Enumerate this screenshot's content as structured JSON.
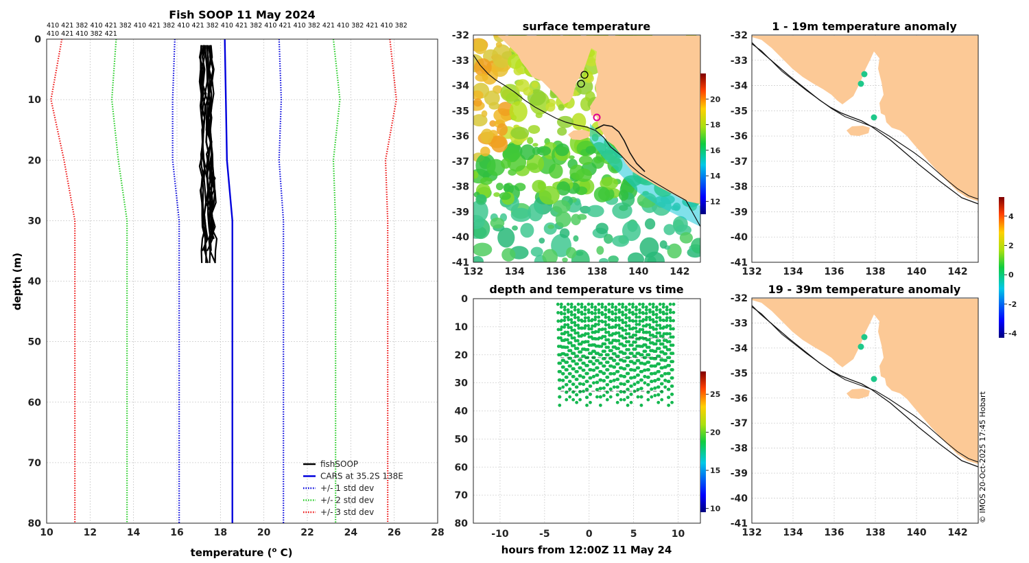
{
  "chart_data": [
    {
      "type": "line",
      "title": "Fish SOOP 11 May 2024",
      "xlabel_main": "temperature (",
      "xlabel_sup": "o",
      "xlabel_end": " C)",
      "ylabel": "depth (m)",
      "xlim": [
        10,
        28
      ],
      "ylim": [
        0,
        80
      ],
      "y_reversed": true,
      "xticks": [
        "10",
        "12",
        "14",
        "16",
        "18",
        "20",
        "22",
        "24",
        "26",
        "28"
      ],
      "yticks": [
        "0",
        "10",
        "20",
        "30",
        "40",
        "50",
        "60",
        "70",
        "80"
      ],
      "grid": true,
      "id_row1": "410 421 382 410 421 382 410 421 382 410 421 382 410 421 382 410 421 410 382 421 410 382 421 410 382",
      "id_row2": "410 421 410 382 421",
      "cars_depths": [
        0,
        10,
        20,
        30,
        80
      ],
      "series": [
        {
          "name": "fishSOOP",
          "color": "#000000",
          "style": "solid",
          "values_range": {
            "temperature": [
              17.0,
              18.0
            ],
            "depth": [
              1,
              39
            ]
          }
        },
        {
          "name": "CARS at 35.2S 138E",
          "color": "#0000dd",
          "style": "solid",
          "values": [
            18.2,
            18.25,
            18.3,
            18.55,
            18.55
          ]
        },
        {
          "name": "+/- 1 std dev",
          "color": "#0000dd",
          "style": "dotted",
          "values": [
            15.9,
            15.8,
            15.8,
            16.1,
            16.1
          ]
        },
        {
          "name": "+/- 1 std dev upper",
          "color": "#0000dd",
          "style": "dotted",
          "values": [
            20.7,
            20.8,
            20.7,
            20.9,
            20.9
          ]
        },
        {
          "name": "+/- 2 std dev",
          "color": "#22cc22",
          "style": "dotted",
          "values": [
            13.2,
            13.0,
            13.3,
            13.7,
            13.7
          ]
        },
        {
          "name": "+/- 2 std dev upper",
          "color": "#22cc22",
          "style": "dotted",
          "values": [
            23.2,
            23.5,
            23.2,
            23.3,
            23.3
          ]
        },
        {
          "name": "+/- 3 std dev",
          "color": "#ee1111",
          "style": "dotted",
          "values": [
            10.7,
            10.2,
            10.8,
            11.3,
            11.3
          ]
        },
        {
          "name": "+/- 3 std dev upper",
          "color": "#ee1111",
          "style": "dotted",
          "values": [
            25.8,
            26.1,
            25.6,
            25.7,
            25.7
          ]
        }
      ],
      "legend": [
        "fishSOOP",
        "CARS at 35.2S 138E",
        "+/- 1 std dev",
        "+/- 2 std dev",
        "+/- 3 std dev"
      ],
      "legend_position": "bottom-right"
    },
    {
      "type": "heatmap",
      "title": "surface temperature",
      "xlim": [
        132,
        143
      ],
      "ylim": [
        -41,
        -32
      ],
      "xticks": [
        "132",
        "134",
        "136",
        "138",
        "140",
        "142"
      ],
      "yticks": [
        "-32",
        "-33",
        "-34",
        "-35",
        "-36",
        "-37",
        "-38",
        "-39",
        "-40",
        "-41"
      ],
      "colorbar": {
        "range": [
          11,
          22
        ],
        "ticks": [
          "12",
          "14",
          "16",
          "18",
          "20"
        ]
      },
      "land_color": "#fcc996"
    },
    {
      "type": "scatter",
      "title": "depth and temperature vs time",
      "xlabel": "hours from 12:00Z 11 May 24",
      "xlim": [
        -13,
        12.5
      ],
      "ylim": [
        0,
        80
      ],
      "y_reversed": true,
      "xticks": [
        "-10",
        "-5",
        "0",
        "5",
        "10"
      ],
      "yticks": [
        "0",
        "10",
        "20",
        "30",
        "40",
        "50",
        "60",
        "70",
        "80"
      ],
      "time_range": [
        -3.5,
        9.5
      ],
      "depth_range": [
        2,
        38
      ],
      "marker_color": "#15b850",
      "colorbar": {
        "range": [
          9.5,
          28
        ],
        "ticks": [
          "10",
          "15",
          "20",
          "25"
        ]
      }
    },
    {
      "type": "heatmap",
      "title": "1 - 19m temperature anomaly",
      "xlim": [
        132,
        143
      ],
      "ylim": [
        -41,
        -32
      ],
      "xticks": [
        "132",
        "134",
        "136",
        "138",
        "140",
        "142"
      ],
      "yticks": [
        "-32",
        "-33",
        "-34",
        "-35",
        "-36",
        "-37",
        "-38",
        "-39",
        "-40",
        "-41"
      ],
      "points": [
        {
          "lon": 137.5,
          "lat": -33.5
        },
        {
          "lon": 137.3,
          "lat": -33.9
        },
        {
          "lon": 138.0,
          "lat": -35.2
        }
      ],
      "land_color": "#fcc996"
    },
    {
      "type": "heatmap",
      "title": "19 - 39m temperature anomaly",
      "xlim": [
        132,
        143
      ],
      "ylim": [
        -41,
        -32
      ],
      "xticks": [
        "132",
        "134",
        "136",
        "138",
        "140",
        "142"
      ],
      "yticks": [
        "-32",
        "-33",
        "-34",
        "-35",
        "-36",
        "-37",
        "-38",
        "-39",
        "-40",
        "-41"
      ],
      "points": [
        {
          "lon": 137.5,
          "lat": -33.5
        },
        {
          "lon": 137.3,
          "lat": -33.9
        },
        {
          "lon": 138.0,
          "lat": -35.2
        }
      ],
      "colorbar": {
        "range": [
          -4.3,
          5.3
        ],
        "ticks": [
          "4",
          "2",
          "0",
          "-2",
          "-4"
        ]
      },
      "land_color": "#fcc996"
    }
  ],
  "credit": "© IMOS 20-Oct-2025 17:45 Hobart"
}
